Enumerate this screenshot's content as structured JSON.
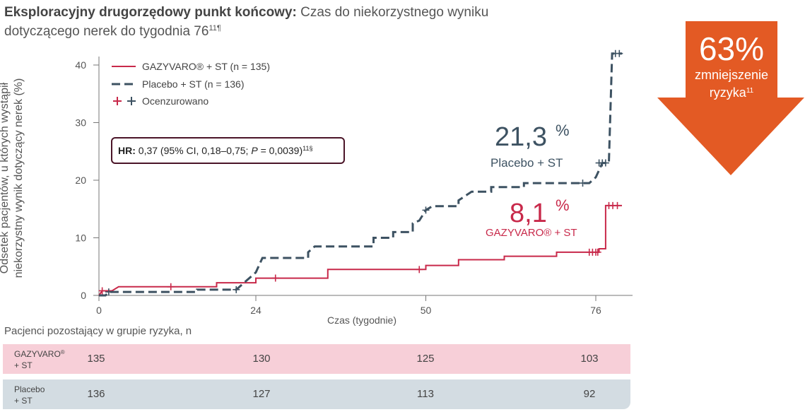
{
  "title": {
    "bold": "Eksploracyjny drugorzędowy punkt końcowy:",
    "rest_line1": " Czas do niekorzystnego wyniku",
    "rest_line2": "dotyczącego nerek do tygodnia 76",
    "sup": "11¶"
  },
  "y_axis_label_line1": "Odsetek pacjentów, u których wystąpił",
  "y_axis_label_line2": "niekorzystny wynik dotyczący nerek (%)",
  "hr_box": {
    "bold": "HR:",
    "text_a": " 0,37 (95% CI, 0,18–0,75; ",
    "p_italic": "P",
    "text_b": " = 0,0039)",
    "sup": "11§"
  },
  "annotations": {
    "placebo_pct": "21,3",
    "placebo_pct_sign": "%",
    "placebo_label": "Placebo + ST",
    "gazyvaro_pct": "8,1",
    "gazyvaro_pct_sign": "%",
    "gazyvaro_label": "GAZYVARO® + ST"
  },
  "arrow": {
    "value": "63%",
    "line1": "zmniejszenie",
    "line2": "ryzyka",
    "sup": "11",
    "color": "#e35a24"
  },
  "risk_table": {
    "title": "Pacjenci pozostający w grupie ryzyka, n",
    "rows": [
      {
        "label_line1": "GAZYVARO",
        "label_sup": "®",
        "label_line2": "+ ST",
        "values": [
          "135",
          "130",
          "125",
          "103"
        ]
      },
      {
        "label_line1": "Placebo",
        "label_sup": "",
        "label_line2": "+ ST",
        "values": [
          "136",
          "127",
          "113",
          "92"
        ]
      }
    ],
    "weeks": [
      0,
      24,
      50,
      76
    ]
  },
  "chart_data": {
    "type": "line",
    "title": "",
    "xlabel": "Czas (tygodnie)",
    "ylabel": "Odsetek pacjentów, u których wystąpił niekorzystny wynik dotyczący nerek (%)",
    "xlim": [
      0,
      80
    ],
    "ylim": [
      0,
      42
    ],
    "x_ticks": [
      "0",
      "24",
      "50",
      "76"
    ],
    "y_ticks": [
      "0",
      "10",
      "20",
      "30",
      "40"
    ],
    "legend": [
      {
        "label": "GAZYVARO® + ST (n = 135)",
        "style": "solid",
        "color": "#c8294a"
      },
      {
        "label": "Placebo + ST (n = 136)",
        "style": "dashed",
        "color": "#3d5262"
      },
      {
        "label": "Ocenzurowano",
        "style": "censor-markers"
      }
    ],
    "legend_position": "top-left",
    "series": [
      {
        "name": "GAZYVARO® + ST (n = 135)",
        "color": "#c8294a",
        "dash": "solid",
        "points": [
          [
            0,
            0
          ],
          [
            0.5,
            0.8
          ],
          [
            2,
            0.8
          ],
          [
            3,
            1.5
          ],
          [
            18,
            1.5
          ],
          [
            18,
            2.2
          ],
          [
            24,
            2.2
          ],
          [
            24,
            3
          ],
          [
            35,
            3
          ],
          [
            35,
            4.5
          ],
          [
            50,
            4.5
          ],
          [
            50,
            5.2
          ],
          [
            55,
            5.2
          ],
          [
            55,
            6.2
          ],
          [
            62,
            6.2
          ],
          [
            62,
            6.8
          ],
          [
            70,
            6.8
          ],
          [
            70,
            7.5
          ],
          [
            76.5,
            7.5
          ],
          [
            76.5,
            8.1
          ],
          [
            77.5,
            8.1
          ],
          [
            77.5,
            15.6
          ],
          [
            80,
            15.6
          ]
        ],
        "censored": [
          [
            0.5,
            0.8
          ],
          [
            11,
            1.5
          ],
          [
            27,
            3
          ],
          [
            49,
            4.5
          ],
          [
            75,
            7.5
          ],
          [
            75.5,
            7.5
          ],
          [
            76,
            7.5
          ],
          [
            76.3,
            7.5
          ],
          [
            78,
            15.6
          ],
          [
            78.6,
            15.6
          ],
          [
            79.3,
            15.6
          ]
        ]
      },
      {
        "name": "Placebo + ST (n = 136)",
        "color": "#3d5262",
        "dash": "dashed",
        "points": [
          [
            0,
            0
          ],
          [
            1,
            0
          ],
          [
            1.5,
            0.6
          ],
          [
            15,
            0.6
          ],
          [
            15,
            1
          ],
          [
            21,
            1
          ],
          [
            22,
            2
          ],
          [
            24,
            4
          ],
          [
            25,
            6.5
          ],
          [
            32,
            6.5
          ],
          [
            32,
            7.5
          ],
          [
            33,
            8.5
          ],
          [
            42,
            8.5
          ],
          [
            42,
            10
          ],
          [
            45,
            10
          ],
          [
            45,
            11
          ],
          [
            48,
            11
          ],
          [
            48,
            12.5
          ],
          [
            49,
            13
          ],
          [
            50,
            14.8
          ],
          [
            51,
            15.5
          ],
          [
            55,
            15.5
          ],
          [
            55,
            16.5
          ],
          [
            57,
            18
          ],
          [
            60,
            18
          ],
          [
            60,
            18.8
          ],
          [
            65,
            18.8
          ],
          [
            65,
            19.5
          ],
          [
            75,
            19.5
          ],
          [
            76,
            20.5
          ],
          [
            77,
            23
          ],
          [
            78,
            23
          ],
          [
            78.5,
            42
          ],
          [
            80,
            42
          ]
        ],
        "censored": [
          [
            1.5,
            0.6
          ],
          [
            21,
            1
          ],
          [
            50,
            14.8
          ],
          [
            74,
            19.5
          ],
          [
            76.5,
            23
          ],
          [
            77,
            23
          ],
          [
            77.5,
            23
          ],
          [
            79,
            42
          ],
          [
            79.6,
            42
          ]
        ]
      }
    ]
  }
}
